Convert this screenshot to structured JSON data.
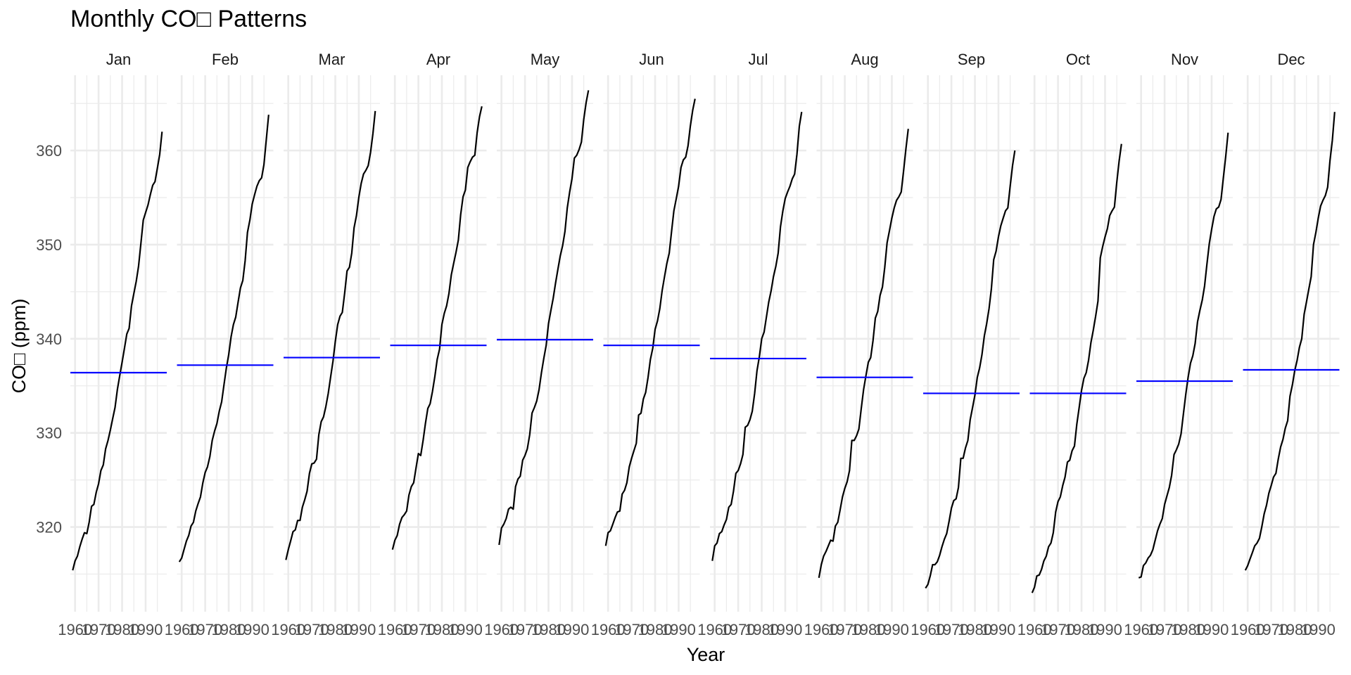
{
  "chart_data": {
    "type": "line",
    "title": "Monthly CO□ Patterns",
    "xlabel": "Year",
    "ylabel": "CO□ (ppm)",
    "x_ticks": [
      1960,
      1970,
      1980,
      1990
    ],
    "x_tick_labels": [
      "1960",
      "1970",
      "1980",
      "1990"
    ],
    "xlim": [
      1958,
      1999
    ],
    "y_ticks": [
      320,
      330,
      340,
      350,
      360
    ],
    "y_tick_labels": [
      "320",
      "330",
      "340",
      "350",
      "360"
    ],
    "ylim": [
      311,
      368
    ],
    "grid": true,
    "line_color": "#000000",
    "mean_line_color": "#0000ff",
    "grid_color": "#ebebeb",
    "years": [
      1959,
      1960,
      1961,
      1962,
      1963,
      1964,
      1965,
      1966,
      1967,
      1968,
      1969,
      1970,
      1971,
      1972,
      1973,
      1974,
      1975,
      1976,
      1977,
      1978,
      1979,
      1980,
      1981,
      1982,
      1983,
      1984,
      1985,
      1986,
      1987,
      1988,
      1989,
      1990,
      1991,
      1992,
      1993,
      1994,
      1995,
      1996,
      1997
    ],
    "panels": [
      {
        "month": "Jan",
        "mean": 336.4,
        "values": [
          315.4,
          316.4,
          316.9,
          317.9,
          318.7,
          319.4,
          319.3,
          320.5,
          322.2,
          322.4,
          323.7,
          324.6,
          326.0,
          326.6,
          328.3,
          329.2,
          330.3,
          331.5,
          332.7,
          334.6,
          336.1,
          337.5,
          339.0,
          340.5,
          341.1,
          343.5,
          344.8,
          346.1,
          347.7,
          350.1,
          352.6,
          353.4,
          354.2,
          355.3,
          356.3,
          356.7,
          358.1,
          359.6,
          362.0
        ]
      },
      {
        "month": "Feb",
        "mean": 337.2,
        "values": [
          316.3,
          316.7,
          317.6,
          318.5,
          319.1,
          320.1,
          320.5,
          321.7,
          322.5,
          323.2,
          324.7,
          325.8,
          326.4,
          327.5,
          329.2,
          330.2,
          331.0,
          332.3,
          333.3,
          335.1,
          336.9,
          338.3,
          340.2,
          341.5,
          342.3,
          343.9,
          345.4,
          346.2,
          348.3,
          351.3,
          352.6,
          354.3,
          355.3,
          356.2,
          356.8,
          357.1,
          358.5,
          361.2,
          363.8
        ]
      },
      {
        "month": "Mar",
        "mean": 338.0,
        "values": [
          316.5,
          317.6,
          318.5,
          319.5,
          319.7,
          320.7,
          320.7,
          322.1,
          322.9,
          323.8,
          325.7,
          326.7,
          326.8,
          327.2,
          329.8,
          331.2,
          331.7,
          332.8,
          334.2,
          335.9,
          337.6,
          339.7,
          341.5,
          342.4,
          342.8,
          344.9,
          347.2,
          347.6,
          349.1,
          351.8,
          353.1,
          355.0,
          356.5,
          357.5,
          357.9,
          358.4,
          359.8,
          361.8,
          364.2
        ]
      },
      {
        "month": "Apr",
        "mean": 339.3,
        "values": [
          317.6,
          318.6,
          319.1,
          320.3,
          321.0,
          321.3,
          321.7,
          323.4,
          324.3,
          324.7,
          326.3,
          327.8,
          327.6,
          329.2,
          331.0,
          332.6,
          333.1,
          334.4,
          336.0,
          337.8,
          338.9,
          341.5,
          342.7,
          343.5,
          344.8,
          346.8,
          348.0,
          349.2,
          350.5,
          353.2,
          355.1,
          355.8,
          358.2,
          358.8,
          359.3,
          359.5,
          361.9,
          363.6,
          364.7
        ]
      },
      {
        "month": "May",
        "mean": 339.9,
        "values": [
          318.1,
          319.9,
          320.3,
          320.9,
          321.9,
          322.1,
          321.9,
          324.3,
          325.1,
          325.4,
          327.1,
          327.6,
          328.3,
          329.8,
          332.1,
          332.7,
          333.4,
          334.6,
          336.4,
          337.9,
          339.3,
          341.6,
          343.0,
          344.3,
          345.9,
          347.4,
          348.8,
          349.9,
          351.4,
          353.9,
          355.6,
          357.0,
          359.2,
          359.5,
          360.1,
          360.9,
          363.3,
          365.1,
          366.4
        ]
      },
      {
        "month": "Jun",
        "mean": 339.3,
        "values": [
          318.0,
          319.4,
          319.6,
          320.3,
          321.0,
          321.6,
          321.7,
          323.5,
          323.9,
          324.7,
          326.4,
          327.3,
          328.1,
          328.9,
          331.9,
          332.1,
          333.6,
          334.3,
          335.9,
          337.8,
          339.0,
          341.0,
          341.9,
          343.2,
          345.1,
          346.6,
          348.0,
          349.1,
          351.4,
          353.6,
          354.9,
          356.2,
          358.2,
          359.0,
          359.3,
          360.5,
          362.6,
          364.3,
          365.5
        ]
      },
      {
        "month": "Jul",
        "mean": 337.9,
        "values": [
          316.4,
          318.0,
          318.3,
          319.3,
          319.5,
          320.2,
          320.8,
          322.1,
          322.4,
          323.8,
          325.7,
          326.0,
          326.7,
          327.7,
          330.6,
          330.8,
          331.4,
          332.3,
          334.2,
          336.6,
          338.1,
          340.0,
          340.7,
          342.3,
          343.9,
          345.1,
          346.6,
          347.7,
          349.1,
          351.9,
          353.6,
          354.9,
          355.6,
          356.2,
          357.0,
          357.5,
          359.6,
          362.6,
          364.1
        ]
      },
      {
        "month": "Aug",
        "mean": 335.9,
        "values": [
          314.6,
          316.0,
          316.9,
          317.4,
          318.0,
          318.6,
          318.5,
          320.1,
          320.5,
          321.8,
          323.2,
          324.1,
          324.8,
          326.0,
          329.2,
          329.2,
          329.7,
          330.4,
          332.6,
          334.6,
          336.1,
          337.5,
          338.0,
          339.8,
          342.2,
          342.9,
          344.6,
          345.5,
          347.6,
          350.2,
          351.5,
          352.8,
          353.9,
          354.7,
          355.1,
          355.6,
          357.8,
          360.2,
          362.3
        ]
      },
      {
        "month": "Sep",
        "mean": 334.2,
        "values": [
          313.5,
          313.9,
          314.8,
          316.0,
          316.0,
          316.3,
          317.0,
          317.9,
          318.7,
          319.3,
          320.6,
          322.0,
          322.8,
          323.0,
          324.2,
          327.3,
          327.3,
          328.4,
          329.2,
          331.4,
          332.7,
          334.0,
          335.9,
          336.9,
          338.3,
          340.3,
          341.6,
          343.2,
          345.3,
          348.4,
          349.3,
          350.8,
          352.0,
          352.8,
          353.6,
          353.9,
          356.2,
          358.4,
          360.0
        ]
      },
      {
        "month": "Oct",
        "mean": 334.2,
        "values": [
          313.0,
          313.6,
          314.8,
          314.9,
          315.5,
          316.4,
          316.9,
          317.9,
          318.3,
          319.4,
          321.6,
          322.7,
          323.2,
          324.4,
          325.3,
          326.9,
          327.1,
          328.1,
          328.6,
          330.9,
          332.7,
          334.5,
          335.8,
          336.4,
          337.7,
          339.6,
          340.9,
          342.4,
          344.0,
          348.6,
          349.8,
          350.8,
          351.7,
          353.1,
          353.6,
          354.0,
          356.6,
          358.9,
          360.7
        ]
      },
      {
        "month": "Nov",
        "mean": 335.5,
        "values": [
          314.6,
          314.7,
          315.9,
          316.2,
          316.7,
          317.0,
          317.6,
          318.6,
          319.6,
          320.3,
          320.9,
          322.4,
          323.3,
          324.2,
          325.5,
          327.7,
          328.2,
          328.8,
          329.9,
          332.0,
          334.1,
          335.9,
          337.4,
          338.2,
          339.5,
          341.8,
          343.0,
          344.1,
          345.6,
          347.9,
          350.1,
          351.6,
          353.0,
          353.8,
          354.0,
          354.8,
          357.1,
          359.4,
          361.9
        ]
      },
      {
        "month": "Dec",
        "mean": 336.7,
        "values": [
          315.4,
          315.9,
          316.6,
          317.3,
          318.0,
          318.3,
          318.8,
          320.0,
          321.4,
          322.3,
          323.6,
          324.4,
          325.3,
          325.7,
          327.2,
          328.5,
          329.3,
          330.5,
          331.3,
          333.9,
          335.1,
          336.6,
          337.7,
          339.1,
          340.0,
          342.6,
          343.9,
          345.3,
          346.6,
          350.0,
          351.3,
          352.8,
          354.1,
          354.7,
          355.2,
          356.1,
          358.9,
          361.1,
          364.1
        ]
      }
    ]
  }
}
